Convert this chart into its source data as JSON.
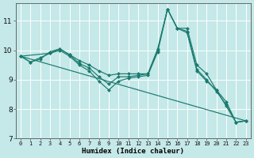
{
  "xlabel": "Humidex (Indice chaleur)",
  "bg_color": "#c5e8e8",
  "grid_color": "#ffffff",
  "line_color": "#1a7a6e",
  "xlim": [
    -0.5,
    23.5
  ],
  "ylim": [
    7,
    11.6
  ],
  "yticks": [
    7,
    8,
    9,
    10,
    11
  ],
  "xticks": [
    0,
    1,
    2,
    3,
    4,
    5,
    6,
    7,
    8,
    9,
    10,
    11,
    12,
    13,
    14,
    15,
    16,
    17,
    18,
    19,
    20,
    21,
    22,
    23
  ],
  "lines": [
    {
      "x": [
        0,
        1,
        2,
        3,
        4,
        5,
        6,
        7,
        8,
        9,
        10,
        11,
        12,
        13,
        14,
        15,
        16,
        17,
        18,
        19,
        20,
        21,
        22,
        23
      ],
      "y": [
        9.8,
        9.6,
        9.75,
        9.9,
        10.05,
        9.85,
        9.65,
        9.5,
        9.3,
        9.15,
        9.2,
        9.2,
        9.2,
        9.2,
        10.05,
        11.4,
        10.75,
        10.75,
        9.5,
        9.2,
        8.65,
        8.25,
        7.55,
        7.6
      ],
      "has_marker": true
    },
    {
      "x": [
        0,
        1,
        2,
        3,
        4,
        5,
        6,
        7,
        8,
        9,
        10,
        11,
        12,
        13,
        14,
        15,
        16,
        17,
        18,
        19,
        20,
        21,
        22,
        23
      ],
      "y": [
        9.8,
        9.6,
        9.7,
        9.95,
        10.05,
        9.85,
        9.55,
        9.4,
        9.1,
        8.85,
        9.1,
        9.1,
        9.15,
        9.2,
        10.0,
        11.4,
        10.75,
        10.65,
        9.35,
        9.0,
        8.6,
        8.15,
        7.55,
        7.6
      ],
      "has_marker": true
    },
    {
      "x": [
        0,
        3,
        4,
        5,
        6,
        7,
        8,
        9,
        10,
        11,
        12,
        13,
        14,
        15,
        16,
        17,
        18,
        19,
        20,
        21,
        22,
        23
      ],
      "y": [
        9.8,
        9.9,
        10.0,
        9.8,
        9.5,
        9.3,
        8.95,
        8.65,
        8.95,
        9.05,
        9.1,
        9.15,
        9.95,
        11.4,
        10.75,
        10.6,
        9.3,
        8.95,
        8.65,
        8.1,
        7.55,
        7.6
      ],
      "has_marker": true
    },
    {
      "x": [
        0,
        23
      ],
      "y": [
        9.8,
        7.6
      ],
      "has_marker": false
    }
  ],
  "marker": "D",
  "markersize": 2.0,
  "linewidth": 0.85,
  "tick_fontsize": 5.0,
  "label_fontsize": 6.5
}
